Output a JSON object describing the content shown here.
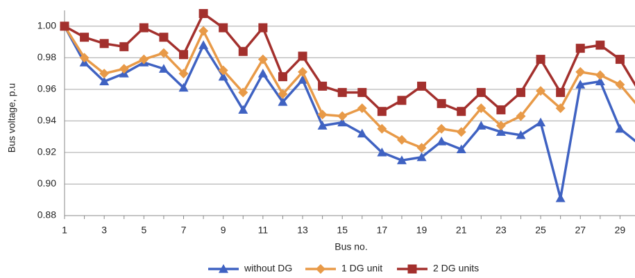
{
  "chart_data": {
    "type": "line",
    "x": [
      1,
      2,
      3,
      4,
      5,
      6,
      7,
      8,
      9,
      10,
      11,
      12,
      13,
      14,
      15,
      16,
      17,
      18,
      19,
      20,
      21,
      22,
      23,
      24,
      25,
      26,
      27,
      28,
      29,
      30
    ],
    "xlim": [
      1,
      30
    ],
    "xticks": [
      1,
      3,
      5,
      7,
      9,
      11,
      13,
      15,
      17,
      19,
      21,
      23,
      25,
      27,
      29
    ],
    "xlabel": "Bus no.",
    "ylabel": "Bus voltage, p.u",
    "ylim": [
      0.88,
      1.01
    ],
    "yticks": [
      {
        "value": 0.88,
        "label": "0.88"
      },
      {
        "value": 0.9,
        "label": "0.90"
      },
      {
        "value": 0.92,
        "label": "0.92"
      },
      {
        "value": 0.94,
        "label": "0.94"
      },
      {
        "value": 0.96,
        "label": "0.96"
      },
      {
        "value": 0.98,
        "label": "0.98"
      },
      {
        "value": 1.0,
        "label": "1.00"
      }
    ],
    "grid": true,
    "legend": "bottom",
    "series": [
      {
        "name": "without DG",
        "color": "#3f62c2",
        "marker": "triangle",
        "values": [
          1.0,
          0.977,
          0.965,
          0.97,
          0.977,
          0.973,
          0.961,
          0.988,
          0.968,
          0.947,
          0.97,
          0.952,
          0.966,
          0.937,
          0.939,
          0.932,
          0.92,
          0.915,
          0.917,
          0.927,
          0.922,
          0.937,
          0.933,
          0.931,
          0.939,
          0.891,
          0.963,
          0.965,
          0.935,
          0.925
        ]
      },
      {
        "name": "1 DG unit",
        "color": "#e89a48",
        "marker": "diamond",
        "values": [
          1.0,
          0.98,
          0.97,
          0.973,
          0.979,
          0.983,
          0.97,
          0.997,
          0.972,
          0.958,
          0.979,
          0.957,
          0.971,
          0.944,
          0.943,
          0.948,
          0.935,
          0.928,
          0.923,
          0.935,
          0.933,
          0.948,
          0.937,
          0.943,
          0.959,
          0.948,
          0.971,
          0.969,
          0.963,
          0.948
        ]
      },
      {
        "name": "2 DG units",
        "color": "#a3302d",
        "marker": "square",
        "values": [
          1.0,
          0.993,
          0.989,
          0.987,
          0.999,
          0.993,
          0.982,
          1.008,
          0.999,
          0.984,
          0.999,
          0.968,
          0.981,
          0.962,
          0.958,
          0.958,
          0.946,
          0.953,
          0.962,
          0.951,
          0.946,
          0.958,
          0.947,
          0.958,
          0.979,
          0.958,
          0.986,
          0.988,
          0.979,
          0.958
        ]
      }
    ]
  }
}
